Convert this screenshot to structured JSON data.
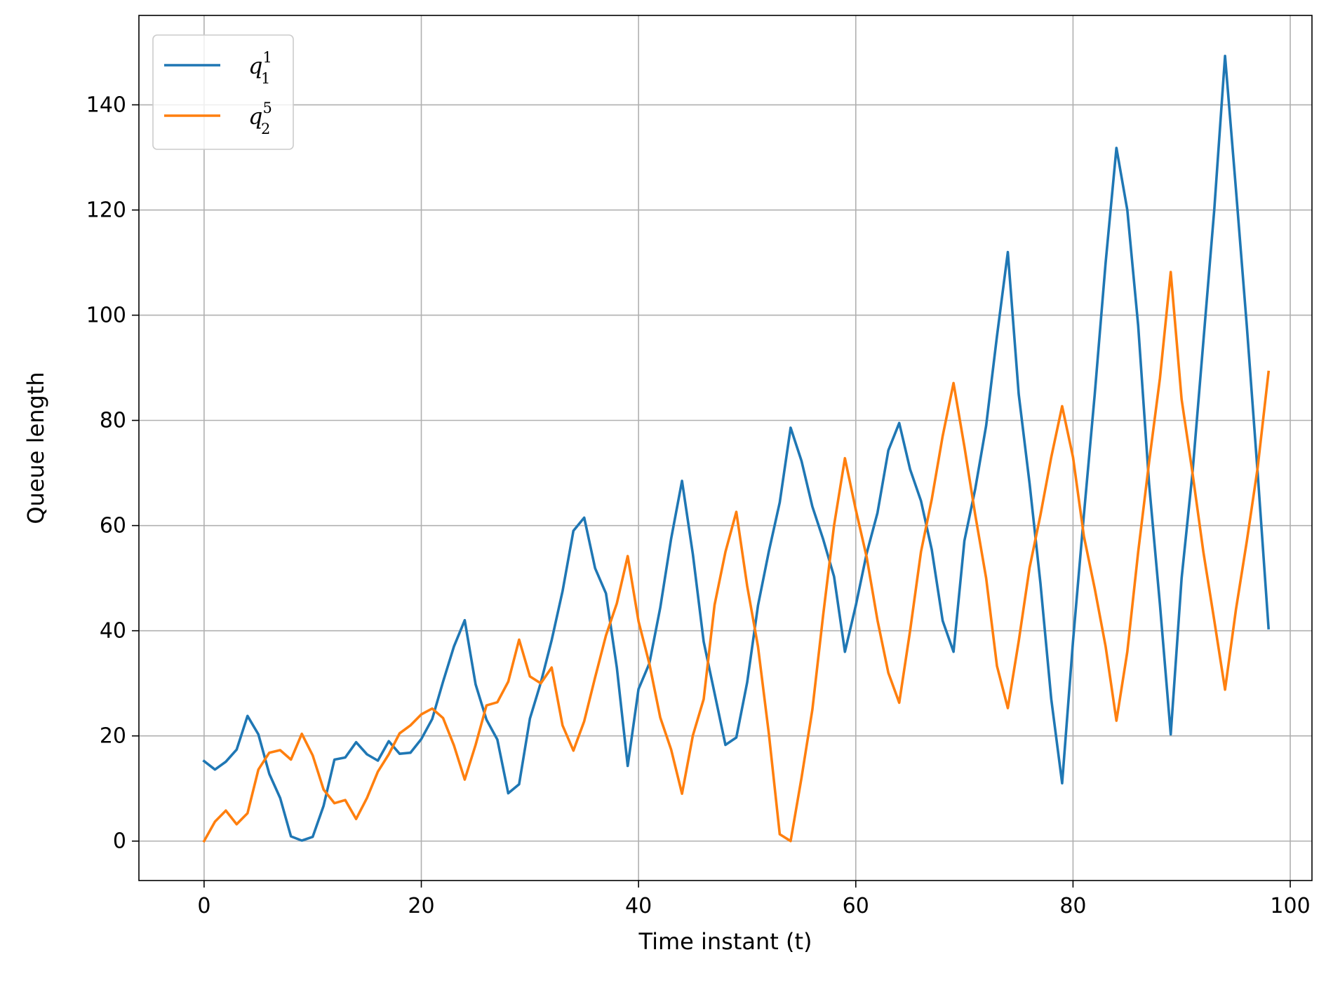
{
  "chart_data": {
    "type": "line",
    "xlabel": "Time instant (t)",
    "ylabel": "Queue length",
    "xlim": [
      -6,
      102
    ],
    "ylim": [
      -7.5,
      157
    ],
    "xticks": [
      0,
      20,
      40,
      60,
      80,
      100
    ],
    "yticks": [
      0,
      20,
      40,
      60,
      80,
      100,
      120,
      140
    ],
    "grid": true,
    "legend_position": "top-left",
    "series": [
      {
        "name": "q",
        "name_sub": "1",
        "name_sup": "1",
        "color": "#1f77b4",
        "x": [
          0,
          1,
          2,
          3,
          4,
          5,
          6,
          7,
          8,
          9,
          10,
          11,
          12,
          13,
          14,
          15,
          16,
          17,
          18,
          19,
          20,
          21,
          22,
          23,
          24,
          25,
          26,
          27,
          28,
          29,
          30,
          31,
          32,
          33,
          34,
          35,
          36,
          37,
          38,
          39,
          40,
          41,
          42,
          43,
          44,
          45,
          46,
          47,
          48,
          49,
          50,
          51,
          52,
          53,
          54,
          55,
          56,
          57,
          58,
          59,
          60,
          61,
          62,
          63,
          64,
          65,
          66,
          67,
          68,
          69,
          70,
          71,
          72,
          73,
          74,
          75,
          76,
          77,
          78,
          79,
          80,
          81,
          82,
          83,
          84,
          85,
          86,
          87,
          88,
          89,
          90,
          91,
          92,
          93,
          94,
          95,
          96,
          97,
          98
        ],
        "y": [
          15.2,
          13.6,
          15.1,
          17.4,
          23.8,
          20.3,
          12.8,
          8.2,
          0.9,
          0.1,
          0.8,
          6.7,
          15.5,
          15.9,
          18.8,
          16.5,
          15.3,
          19.0,
          16.6,
          16.8,
          19.4,
          23.2,
          30.3,
          37.0,
          42.0,
          29.8,
          23.1,
          19.3,
          9.1,
          10.8,
          23.3,
          30.1,
          38.2,
          47.5,
          59.0,
          61.5,
          51.9,
          47.1,
          33.0,
          14.3,
          28.9,
          33.8,
          44.4,
          57.5,
          68.5,
          54.5,
          37.9,
          28.1,
          18.3,
          19.7,
          30.2,
          44.8,
          55.1,
          64.4,
          78.6,
          72.3,
          63.6,
          57.4,
          50.3,
          36.0,
          44.8,
          54.7,
          62.4,
          74.3,
          79.5,
          70.7,
          64.7,
          55.4,
          41.9,
          36.0,
          57.1,
          67.0,
          79.0,
          96.0,
          112.0,
          85.0,
          68.0,
          49.0,
          27.0,
          11.0,
          38.0,
          62.0,
          85.0,
          110.0,
          131.8,
          120.0,
          98.0,
          68.0,
          45.0,
          20.3,
          50.0,
          70.0,
          95.0,
          120.0,
          149.3,
          124.0,
          98.0,
          70.0,
          40.5
        ]
      },
      {
        "name": "q",
        "name_sub": "2",
        "name_sup": "5",
        "color": "#ff7f0e",
        "x": [
          0,
          1,
          2,
          3,
          4,
          5,
          6,
          7,
          8,
          9,
          10,
          11,
          12,
          13,
          14,
          15,
          16,
          17,
          18,
          19,
          20,
          21,
          22,
          23,
          24,
          25,
          26,
          27,
          28,
          29,
          30,
          31,
          32,
          33,
          34,
          35,
          36,
          37,
          38,
          39,
          40,
          41,
          42,
          43,
          44,
          45,
          46,
          47,
          48,
          49,
          50,
          51,
          52,
          53,
          54,
          55,
          56,
          57,
          58,
          59,
          60,
          61,
          62,
          63,
          64,
          65,
          66,
          67,
          68,
          69,
          70,
          71,
          72,
          73,
          74,
          75,
          76,
          77,
          78,
          79,
          80,
          81,
          82,
          83,
          84,
          85,
          86,
          87,
          88,
          89,
          90,
          91,
          92,
          93,
          94,
          95,
          96,
          97,
          98
        ],
        "y": [
          0.0,
          3.7,
          5.8,
          3.2,
          5.3,
          13.6,
          16.8,
          17.3,
          15.5,
          20.4,
          16.3,
          9.8,
          7.2,
          7.8,
          4.2,
          8.2,
          13.2,
          16.5,
          20.5,
          22.0,
          24.1,
          25.2,
          23.4,
          18.2,
          11.7,
          18.3,
          25.8,
          26.4,
          30.3,
          38.3,
          31.3,
          30.0,
          33.0,
          22.0,
          17.2,
          22.8,
          31.1,
          39.1,
          45.2,
          54.2,
          41.8,
          33.7,
          23.5,
          17.4,
          9.0,
          20.1,
          27.0,
          44.9,
          55.0,
          62.6,
          48.5,
          37.0,
          20.4,
          1.3,
          0.0,
          12.0,
          25.0,
          43.0,
          60.0,
          72.8,
          63.0,
          54.0,
          42.0,
          32.0,
          26.3,
          40.0,
          55.0,
          65.0,
          77.0,
          87.1,
          75.0,
          62.0,
          50.0,
          33.3,
          25.3,
          38.0,
          52.0,
          62.0,
          73.0,
          82.7,
          73.0,
          58.0,
          48.0,
          37.0,
          22.9,
          36.0,
          55.0,
          72.0,
          88.0,
          108.2,
          84.0,
          70.0,
          55.0,
          42.0,
          28.8,
          44.0,
          57.0,
          71.0,
          89.2
        ]
      }
    ]
  }
}
